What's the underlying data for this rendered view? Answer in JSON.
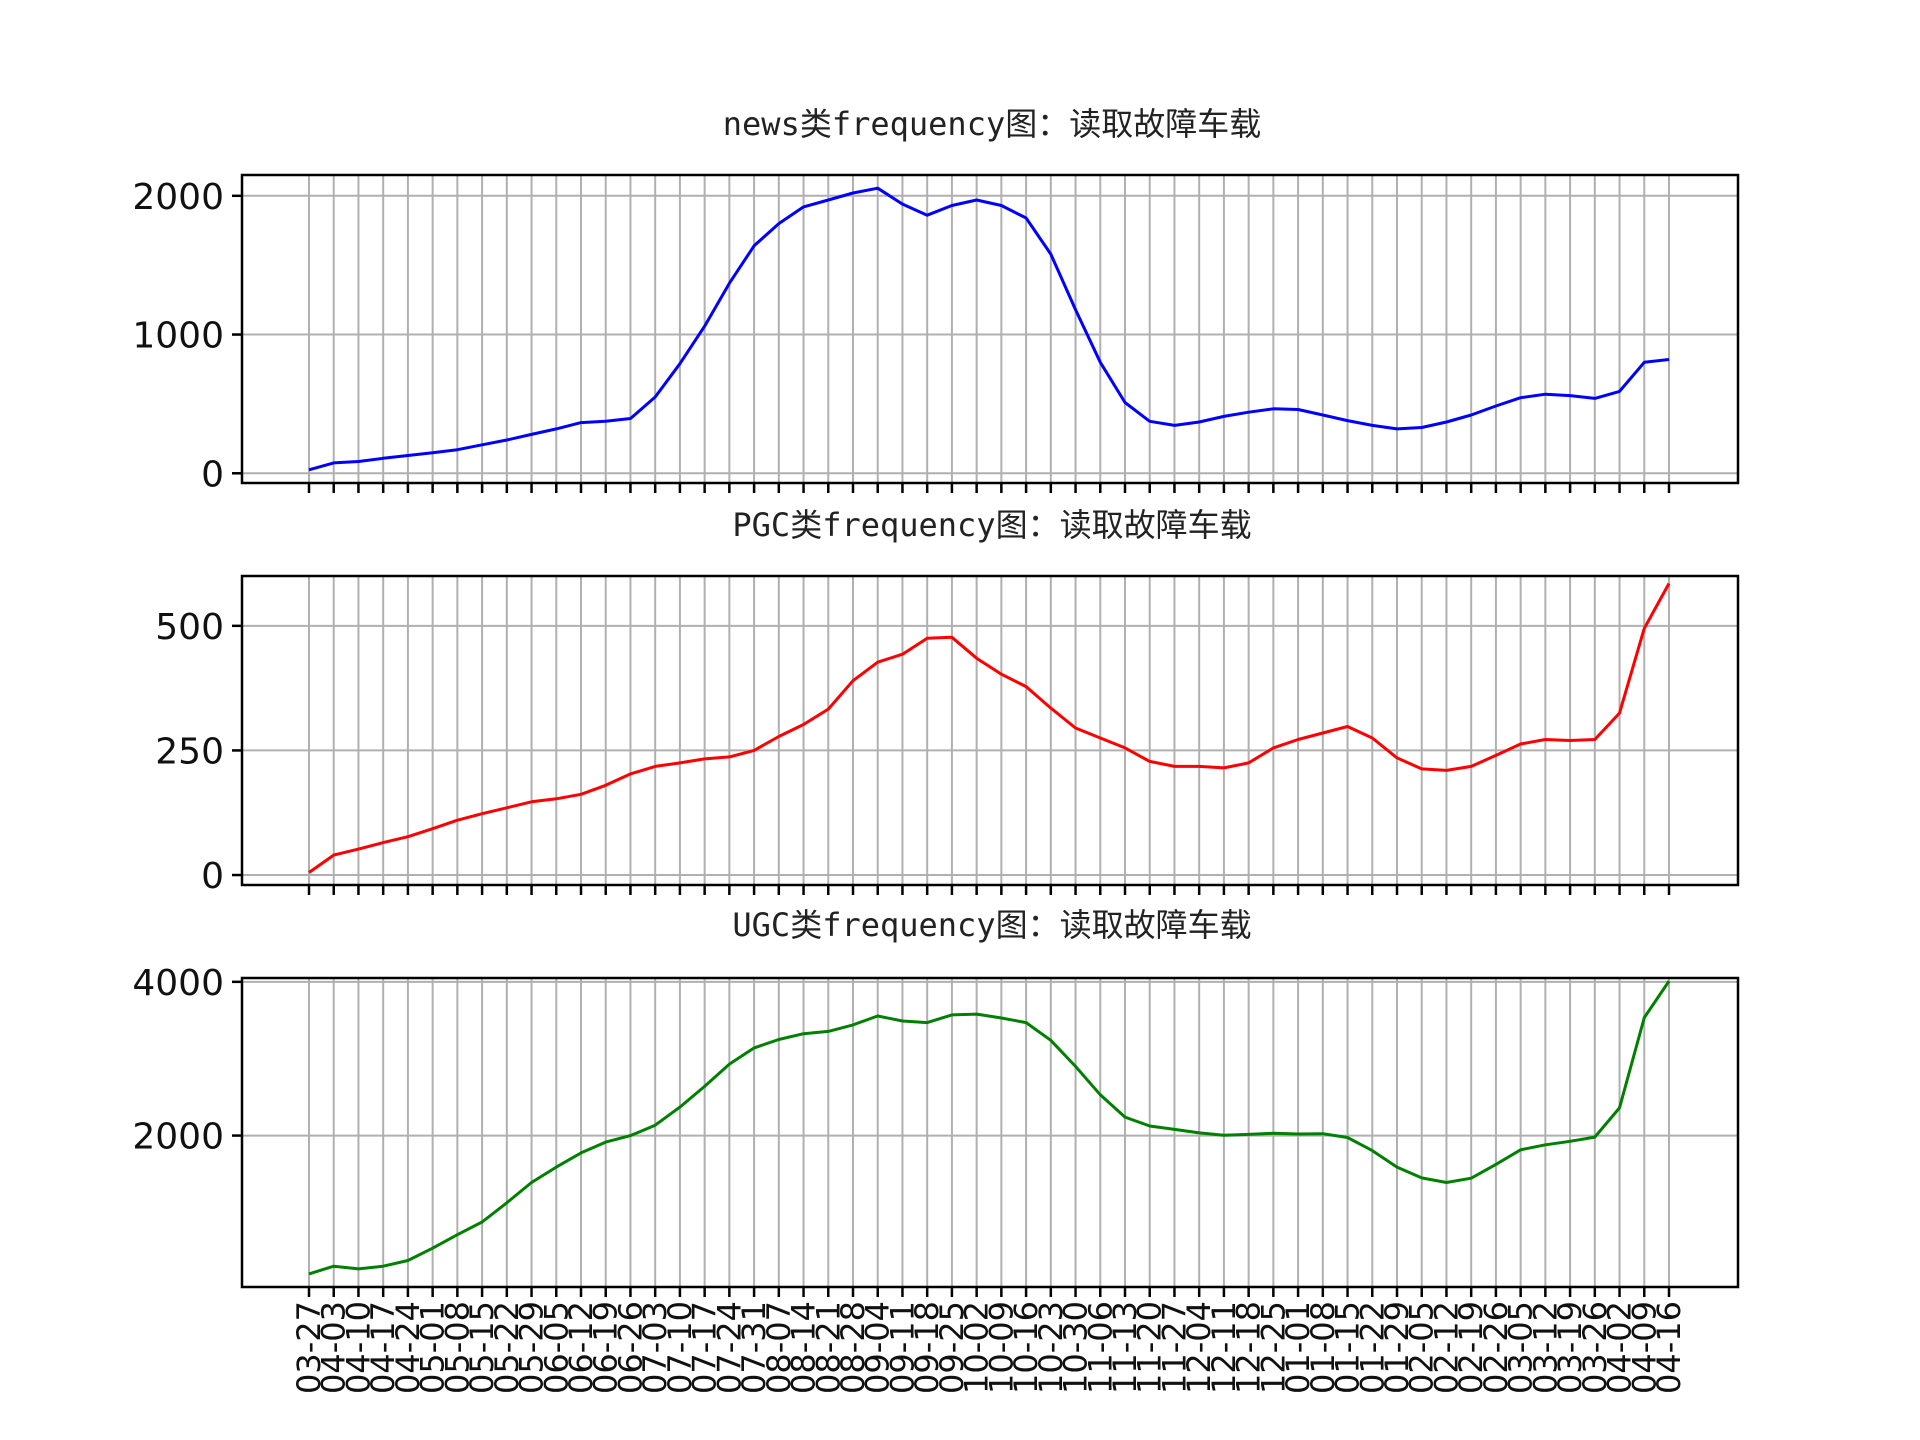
{
  "chart_data": [
    {
      "type": "line",
      "title": "news类frequency图：读取故障车载",
      "color": "#0000ff",
      "yticks": [
        0,
        1000,
        2000
      ],
      "ylim": [
        -70,
        2150
      ],
      "grid": true,
      "values": [
        25,
        75,
        85,
        108,
        128,
        148,
        170,
        205,
        240,
        280,
        320,
        365,
        375,
        395,
        550,
        790,
        1060,
        1370,
        1640,
        1800,
        1920,
        1970,
        2020,
        2055,
        1940,
        1860,
        1930,
        1970,
        1930,
        1840,
        1580,
        1180,
        800,
        510,
        375,
        345,
        370,
        410,
        440,
        465,
        460,
        420,
        380,
        345,
        320,
        330,
        370,
        420,
        485,
        545,
        570,
        560,
        540,
        590,
        800,
        820
      ]
    },
    {
      "type": "line",
      "title": "PGC类frequency图：读取故障车载",
      "color": "#ff0000",
      "yticks": [
        0,
        250,
        500
      ],
      "ylim": [
        -20,
        600
      ],
      "grid": true,
      "values": [
        5,
        40,
        52,
        65,
        77,
        93,
        110,
        123,
        135,
        147,
        153,
        162,
        180,
        203,
        218,
        225,
        233,
        237,
        250,
        278,
        302,
        333,
        390,
        427,
        443,
        475,
        477,
        435,
        403,
        378,
        335,
        295,
        275,
        255,
        228,
        218,
        218,
        215,
        225,
        255,
        272,
        285,
        298,
        275,
        235,
        213,
        210,
        218,
        240,
        263,
        272,
        270,
        272,
        325,
        495,
        585
      ]
    },
    {
      "type": "line",
      "title": "UGC类frequency图：读取故障车载",
      "color": "#008000",
      "yticks": [
        2000,
        4000
      ],
      "ylim": [
        30,
        4050
      ],
      "grid": true,
      "values": [
        200,
        300,
        265,
        300,
        375,
        535,
        710,
        875,
        1125,
        1390,
        1590,
        1775,
        1915,
        2000,
        2135,
        2370,
        2640,
        2930,
        3140,
        3250,
        3325,
        3355,
        3440,
        3555,
        3490,
        3470,
        3570,
        3580,
        3530,
        3470,
        3240,
        2900,
        2530,
        2240,
        2125,
        2080,
        2035,
        2005,
        2015,
        2030,
        2020,
        2025,
        1975,
        1805,
        1590,
        1450,
        1390,
        1445,
        1625,
        1815,
        1880,
        1925,
        1980,
        2360,
        3535,
        4010
      ]
    }
  ],
  "xticks": [
    "03-27",
    "04-03",
    "04-10",
    "04-17",
    "04-24",
    "05-01",
    "05-08",
    "05-15",
    "05-22",
    "05-29",
    "06-05",
    "06-12",
    "06-19",
    "06-26",
    "07-03",
    "07-10",
    "07-17",
    "07-24",
    "07-31",
    "08-07",
    "08-14",
    "08-21",
    "08-28",
    "09-04",
    "09-11",
    "09-18",
    "09-25",
    "10-02",
    "10-09",
    "10-16",
    "10-23",
    "10-30",
    "11-06",
    "11-13",
    "11-20",
    "11-27",
    "12-04",
    "12-11",
    "12-18",
    "12-25",
    "01-01",
    "01-08",
    "01-15",
    "01-22",
    "01-29",
    "02-05",
    "02-12",
    "02-19",
    "02-26",
    "03-05",
    "03-12",
    "03-19",
    "03-26",
    "04-02",
    "04-09",
    "04-16"
  ]
}
